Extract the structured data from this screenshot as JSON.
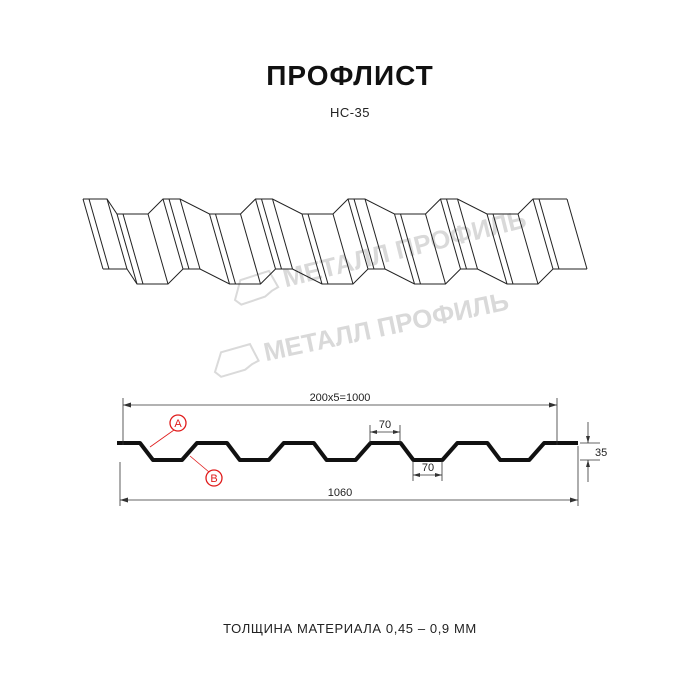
{
  "title": "ПРОФЛИСТ",
  "model": "НС-35",
  "watermark": "МЕТАЛЛ ПРОФИЛЬ",
  "dimensions": {
    "pitch_total": "200x5=1000",
    "full_width": "1060",
    "crest_width": "70",
    "trough_width": "70",
    "height": "35"
  },
  "markers": {
    "a": "A",
    "b": "B"
  },
  "thickness_note": "ТОЛЩИНА МАТЕРИАЛА 0,45 – 0,9 ММ",
  "colors": {
    "line": "#111111",
    "marker": "#e01b1b",
    "watermark": "#c8c8c8"
  }
}
